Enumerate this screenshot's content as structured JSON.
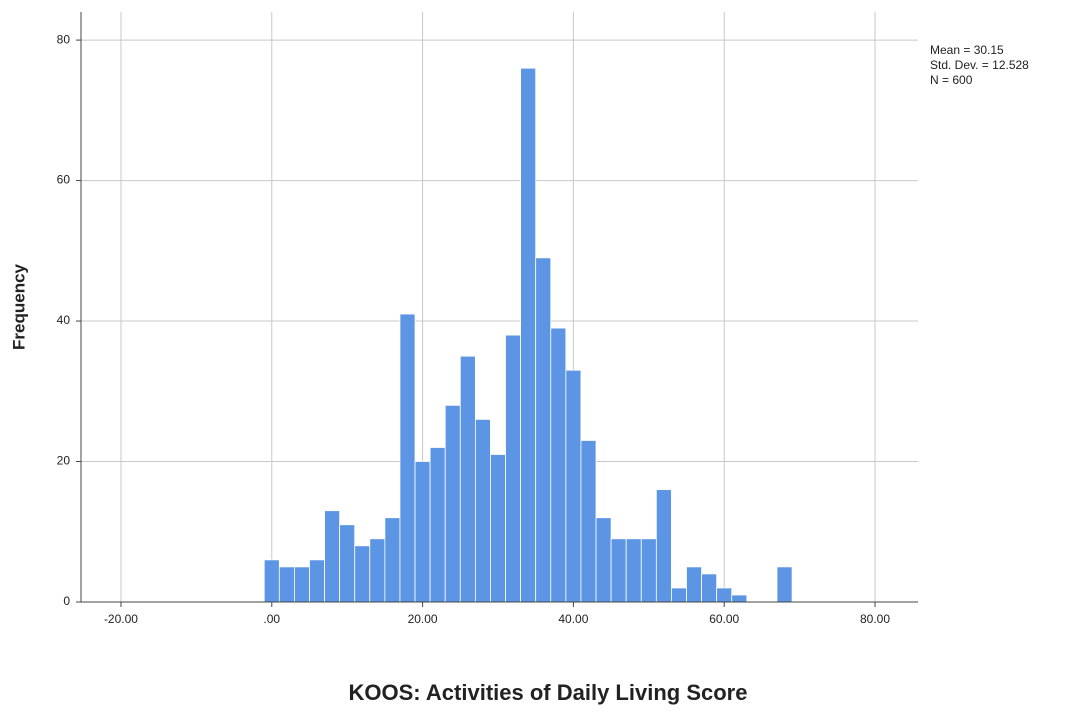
{
  "chart_data": {
    "type": "histogram",
    "x_label": "KOOS: Activities of Daily Living Score",
    "y_label": "Frequency",
    "annotations": [
      "Mean = 30.15",
      "Std. Dev. = 12.528",
      "N = 600"
    ],
    "bins": [
      -1,
      1,
      3,
      5,
      7,
      9,
      11,
      13,
      15,
      17,
      19,
      21,
      23,
      25,
      27,
      29,
      31,
      33,
      35,
      37,
      39,
      41,
      43,
      45,
      47,
      49,
      51,
      53,
      55,
      57,
      59,
      61,
      63,
      65,
      67,
      69
    ],
    "counts": [
      6,
      5,
      5,
      6,
      13,
      11,
      8,
      9,
      12,
      41,
      20,
      22,
      28,
      35,
      26,
      21,
      38,
      76,
      49,
      39,
      33,
      23,
      12,
      9,
      9,
      9,
      16,
      2,
      5,
      4,
      2,
      1,
      0,
      0,
      5
    ],
    "color": "#5b95e3",
    "xlim": [
      -25.3,
      85.7
    ],
    "ylim": [
      0,
      84
    ],
    "xticks": [
      {
        "value": -20,
        "label": "-20.00"
      },
      {
        "value": 0,
        "label": ".00"
      },
      {
        "value": 20,
        "label": "20.00"
      },
      {
        "value": 40,
        "label": "40.00"
      },
      {
        "value": 60,
        "label": "60.00"
      },
      {
        "value": 80,
        "label": "80.00"
      }
    ],
    "yticks": [
      0,
      20,
      40,
      60,
      80
    ],
    "grid": true
  }
}
